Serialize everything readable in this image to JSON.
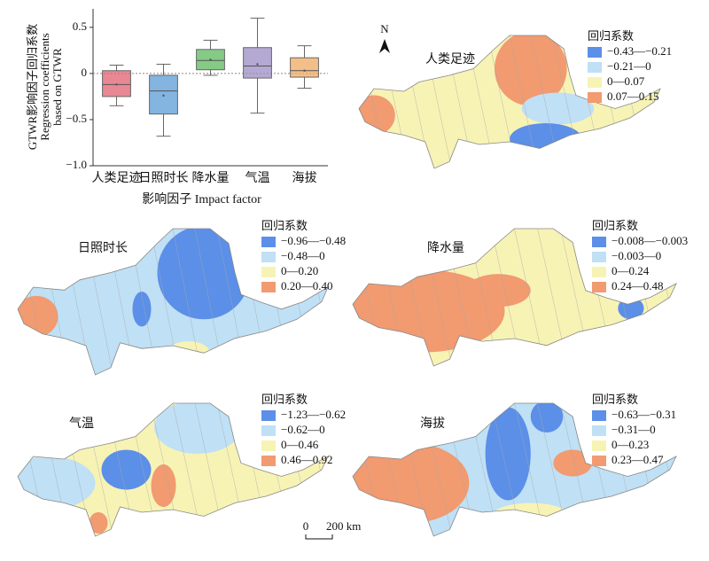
{
  "chart_data": {
    "type": "box",
    "ylabel": [
      "GTWR影响因子回归系数",
      "Regression coefficients",
      "based on GTWR"
    ],
    "xlabel": "影响因子 Impact factor",
    "categories": [
      "人类足迹",
      "日照时长",
      "降水量",
      "气温",
      "海拔"
    ],
    "colors": [
      "#e06070",
      "#5b9bd5",
      "#5cb85c",
      "#9b8cc4",
      "#f0a860"
    ],
    "boxes": [
      {
        "min": -0.35,
        "q1": -0.25,
        "median": -0.12,
        "q3": 0.03,
        "max": 0.09,
        "mean": -0.12
      },
      {
        "min": -0.68,
        "q1": -0.44,
        "median": -0.19,
        "q3": -0.02,
        "max": 0.1,
        "mean": -0.24
      },
      {
        "min": -0.02,
        "q1": 0.04,
        "median": 0.14,
        "q3": 0.26,
        "max": 0.36,
        "mean": 0.15
      },
      {
        "min": -0.43,
        "q1": -0.05,
        "median": 0.08,
        "q3": 0.28,
        "max": 0.6,
        "mean": 0.1
      },
      {
        "min": -0.16,
        "q1": -0.04,
        "median": 0.03,
        "q3": 0.17,
        "max": 0.3,
        "mean": 0.03
      }
    ],
    "ylim": [
      -1,
      0.7
    ],
    "yticks": [
      {
        "value": -1,
        "label": "−1.0"
      },
      {
        "value": -0.5,
        "label": "−0.5"
      },
      0,
      0.5
    ],
    "zero_line": true
  },
  "maps": [
    {
      "title": "人类足迹",
      "legend_title": "回归系数",
      "classes": [
        {
          "label": "−0.43—−0.21",
          "color": "#5b8fe8"
        },
        {
          "label": "−0.21—0",
          "color": "#bfe0f5"
        },
        {
          "label": "0—0.07",
          "color": "#f7f3b5"
        },
        {
          "label": "0.07—0.15",
          "color": "#f29a70"
        }
      ]
    },
    {
      "title": "日照时长",
      "legend_title": "回归系数",
      "classes": [
        {
          "label": "−0.96—−0.48",
          "color": "#5b8fe8"
        },
        {
          "label": "−0.48—0",
          "color": "#bfe0f5"
        },
        {
          "label": "0—0.20",
          "color": "#f7f3b5"
        },
        {
          "label": "0.20—0.40",
          "color": "#f29a70"
        }
      ]
    },
    {
      "title": "降水量",
      "legend_title": "回归系数",
      "classes": [
        {
          "label": "−0.008—−0.003",
          "color": "#5b8fe8"
        },
        {
          "label": "−0.003—0",
          "color": "#bfe0f5"
        },
        {
          "label": "0—0.24",
          "color": "#f7f3b5"
        },
        {
          "label": "0.24—0.48",
          "color": "#f29a70"
        }
      ]
    },
    {
      "title": "气温",
      "legend_title": "回归系数",
      "classes": [
        {
          "label": "−1.23—−0.62",
          "color": "#5b8fe8"
        },
        {
          "label": "−0.62—0",
          "color": "#bfe0f5"
        },
        {
          "label": "0—0.46",
          "color": "#f7f3b5"
        },
        {
          "label": "0.46—0.92",
          "color": "#f29a70"
        }
      ]
    },
    {
      "title": "海拔",
      "legend_title": "回归系数",
      "classes": [
        {
          "label": "−0.63—−0.31",
          "color": "#5b8fe8"
        },
        {
          "label": "−0.31—0",
          "color": "#bfe0f5"
        },
        {
          "label": "0—0.23",
          "color": "#f7f3b5"
        },
        {
          "label": "0.23—0.47",
          "color": "#f29a70"
        }
      ]
    }
  ],
  "north": "N",
  "scale": {
    "zero": "0",
    "label": "200 km"
  }
}
